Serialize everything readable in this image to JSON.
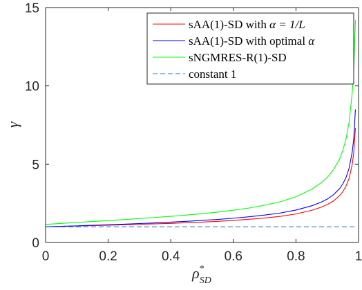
{
  "chart_data": {
    "type": "line",
    "xlabel": "ρ*SD",
    "xlabel_base": "ρ",
    "xlabel_sup": "*",
    "xlabel_sub": "SD",
    "ylabel": "γ",
    "xlim": [
      0,
      1
    ],
    "ylim": [
      0,
      15
    ],
    "xticks": [
      0,
      0.2,
      0.4,
      0.6,
      0.8,
      1
    ],
    "xtick_labels": [
      "0",
      "0.2",
      "0.4",
      "0.6",
      "0.8",
      "1"
    ],
    "yticks": [
      0,
      5,
      10,
      15
    ],
    "ytick_labels": [
      "0",
      "5",
      "10",
      "15"
    ],
    "grid": false,
    "legend_position": "top-right",
    "x": [
      0,
      0.05,
      0.1,
      0.15,
      0.2,
      0.25,
      0.3,
      0.35,
      0.4,
      0.45,
      0.5,
      0.55,
      0.6,
      0.65,
      0.7,
      0.75,
      0.8,
      0.85,
      0.88,
      0.9,
      0.92,
      0.94,
      0.95,
      0.96,
      0.97,
      0.98,
      0.985,
      0.99
    ],
    "series": [
      {
        "name": "sAA(1)-SD with α = 1/L",
        "color": "#ff0000",
        "style": "solid",
        "values": [
          1.0,
          1.03,
          1.05,
          1.08,
          1.1,
          1.13,
          1.16,
          1.19,
          1.22,
          1.26,
          1.3,
          1.35,
          1.41,
          1.48,
          1.56,
          1.67,
          1.82,
          2.05,
          2.25,
          2.42,
          2.65,
          3.0,
          3.25,
          3.6,
          4.1,
          5.0,
          5.8,
          7.3
        ]
      },
      {
        "name": "sAA(1)-SD with optimal α",
        "color": "#0000ff",
        "style": "solid",
        "values": [
          1.0,
          1.03,
          1.06,
          1.1,
          1.13,
          1.17,
          1.21,
          1.25,
          1.3,
          1.35,
          1.41,
          1.47,
          1.55,
          1.64,
          1.75,
          1.88,
          2.07,
          2.34,
          2.57,
          2.77,
          3.05,
          3.45,
          3.75,
          4.15,
          4.75,
          5.8,
          6.7,
          8.5
        ]
      },
      {
        "name": "sNGMRES-R(1)-SD",
        "color": "#00ff00",
        "style": "solid",
        "values": [
          1.15,
          1.22,
          1.28,
          1.34,
          1.4,
          1.46,
          1.53,
          1.6,
          1.67,
          1.75,
          1.84,
          1.94,
          2.06,
          2.2,
          2.38,
          2.6,
          2.92,
          3.4,
          3.8,
          4.15,
          4.65,
          5.35,
          5.9,
          6.6,
          7.7,
          9.6,
          11.2,
          14.2
        ]
      },
      {
        "name": "constant 1",
        "color": "#2a7fc0",
        "style": "dashed",
        "values": [
          1,
          1,
          1,
          1,
          1,
          1,
          1,
          1,
          1,
          1,
          1,
          1,
          1,
          1,
          1,
          1,
          1,
          1,
          1,
          1,
          1,
          1,
          1,
          1,
          1,
          1,
          1,
          1
        ]
      }
    ],
    "legend_labels": [
      {
        "pre": "sAA(1)-SD with ",
        "math": "α = 1/L"
      },
      {
        "pre": "sAA(1)-SD with optimal ",
        "math": "α"
      },
      {
        "pre": "sNGMRES-R(1)-SD",
        "math": ""
      },
      {
        "pre": "constant 1",
        "math": ""
      }
    ]
  }
}
